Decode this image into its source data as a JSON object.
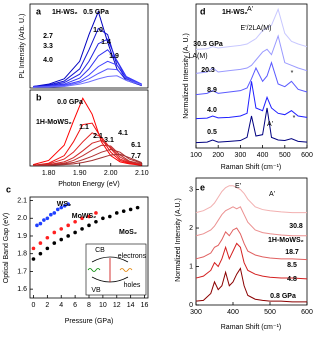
{
  "chart_data": [
    {
      "panel": "a",
      "type": "line",
      "title": "1H-WS₂",
      "title_color": "#2020e0",
      "y_label": "PL Intensity (Arb. U.)",
      "xlim": [
        1.74,
        2.12
      ],
      "ylim": [
        0,
        1.1
      ],
      "x": [
        1.75,
        1.8,
        1.85,
        1.9,
        1.93,
        1.96,
        1.99,
        2.02,
        2.05,
        2.1
      ],
      "series": [
        {
          "name": "0.5 GPa",
          "color": "#0000c0",
          "values": [
            0.02,
            0.05,
            0.12,
            0.35,
            0.7,
            1.0,
            0.6,
            0.25,
            0.1,
            0.03
          ]
        },
        {
          "name": "1.0",
          "color": "#1010d0",
          "values": [
            0.02,
            0.04,
            0.09,
            0.25,
            0.5,
            0.78,
            0.7,
            0.3,
            0.12,
            0.04
          ]
        },
        {
          "name": "1.4",
          "color": "#2020e0",
          "values": [
            0.02,
            0.03,
            0.07,
            0.18,
            0.35,
            0.58,
            0.64,
            0.35,
            0.14,
            0.04
          ]
        },
        {
          "name": "1.9",
          "color": "#3030f0",
          "values": [
            0.01,
            0.03,
            0.05,
            0.13,
            0.25,
            0.42,
            0.5,
            0.36,
            0.15,
            0.05
          ]
        },
        {
          "name": "2.7",
          "color": "#4040ff",
          "values": [
            0.01,
            0.02,
            0.04,
            0.09,
            0.17,
            0.28,
            0.35,
            0.3,
            0.15,
            0.05
          ]
        },
        {
          "name": "3.3",
          "color": "#5858ff",
          "values": [
            0.01,
            0.02,
            0.03,
            0.07,
            0.12,
            0.19,
            0.25,
            0.24,
            0.13,
            0.04
          ]
        },
        {
          "name": "4.0",
          "color": "#7070ff",
          "values": [
            0.01,
            0.01,
            0.02,
            0.05,
            0.08,
            0.12,
            0.15,
            0.16,
            0.1,
            0.04
          ]
        }
      ]
    },
    {
      "panel": "b",
      "type": "line",
      "title": "1H-MoWS₂",
      "title_color": "#e02020",
      "x_label": "Photon Energy (eV)",
      "xlim": [
        1.74,
        2.12
      ],
      "ylim": [
        0,
        1.1
      ],
      "xticks": [
        {
          "value": 1.8,
          "label": "1.80"
        },
        {
          "value": 1.9,
          "label": "1.90"
        },
        {
          "value": 2.0,
          "label": "2.00"
        },
        {
          "value": 2.1,
          "label": "2.10"
        }
      ],
      "x": [
        1.75,
        1.8,
        1.85,
        1.88,
        1.91,
        1.94,
        1.97,
        2.0,
        2.03,
        2.06,
        2.1
      ],
      "series": [
        {
          "name": "0.0 GPa",
          "color": "#ff0000",
          "values": [
            0.02,
            0.08,
            0.3,
            0.65,
            0.98,
            0.75,
            0.35,
            0.15,
            0.06,
            0.03,
            0.01
          ]
        },
        {
          "name": "1.1",
          "color": "#f01010",
          "values": [
            0.01,
            0.04,
            0.15,
            0.35,
            0.6,
            0.62,
            0.4,
            0.2,
            0.08,
            0.04,
            0.02
          ]
        },
        {
          "name": "2.1",
          "color": "#e02020",
          "values": [
            0.01,
            0.03,
            0.1,
            0.2,
            0.35,
            0.48,
            0.42,
            0.25,
            0.1,
            0.05,
            0.02
          ]
        },
        {
          "name": "3.1",
          "color": "#d02828",
          "values": [
            0.01,
            0.02,
            0.06,
            0.12,
            0.22,
            0.33,
            0.37,
            0.27,
            0.13,
            0.06,
            0.02
          ]
        },
        {
          "name": "4.1",
          "color": "#c03030",
          "values": [
            0.01,
            0.02,
            0.04,
            0.08,
            0.15,
            0.23,
            0.3,
            0.29,
            0.16,
            0.07,
            0.03
          ]
        },
        {
          "name": "6.1",
          "color": "#b03030",
          "values": [
            0.01,
            0.01,
            0.03,
            0.05,
            0.09,
            0.14,
            0.2,
            0.24,
            0.2,
            0.1,
            0.04
          ]
        },
        {
          "name": "7.7",
          "color": "#a03030",
          "values": [
            0.01,
            0.01,
            0.02,
            0.03,
            0.05,
            0.08,
            0.12,
            0.16,
            0.17,
            0.12,
            0.05
          ]
        }
      ]
    },
    {
      "panel": "c",
      "type": "scatter",
      "x_label": "Pressure (GPa)",
      "y_label": "Optical Band Gap (eV)",
      "xlim": [
        -0.5,
        16.5
      ],
      "ylim": [
        1.55,
        2.12
      ],
      "xticks": [
        0,
        2,
        4,
        6,
        8,
        10,
        12,
        14,
        16
      ],
      "yticks": [
        1.6,
        1.7,
        1.8,
        1.9,
        {
          "value": 2,
          "label": "2.0"
        },
        2.1
      ],
      "series": [
        {
          "name": "WS₂",
          "color": "#2040ff",
          "x": [
            0.5,
            1,
            1.5,
            2,
            2.5,
            3,
            3.5,
            4,
            4.5,
            5
          ],
          "values": [
            1.96,
            1.97,
            1.99,
            2.0,
            2.02,
            2.03,
            2.05,
            2.06,
            2.07,
            2.08
          ]
        },
        {
          "name": "MoWS₂",
          "color": "#ff2020",
          "x": [
            0,
            1,
            2,
            3,
            4,
            5,
            6,
            7,
            8,
            9
          ],
          "values": [
            1.83,
            1.86,
            1.89,
            1.92,
            1.94,
            1.96,
            1.98,
            2.0,
            2.01,
            2.03
          ]
        },
        {
          "name": "MoS₂",
          "color": "#000000",
          "x": [
            0,
            1,
            2,
            3,
            4,
            5,
            6,
            7,
            8,
            9,
            10,
            11,
            12,
            13,
            14,
            15
          ],
          "values": [
            1.77,
            1.8,
            1.83,
            1.86,
            1.88,
            1.9,
            1.92,
            1.94,
            1.96,
            1.98,
            2.0,
            2.01,
            2.03,
            2.04,
            2.05,
            2.06
          ]
        }
      ],
      "inset": {
        "labels": [
          "CB",
          "VB",
          "electrons",
          "holes"
        ]
      }
    },
    {
      "panel": "d",
      "type": "line",
      "title": "1H-WS₂",
      "title_color": "#2020e0",
      "x_label": "Raman Shift (cm⁻¹)",
      "y_label": "Normalized Intensity (A. U.)",
      "xlim": [
        100,
        600
      ],
      "ylim": [
        0,
        5.4
      ],
      "xticks": [
        100,
        200,
        300,
        400,
        500,
        600
      ],
      "x": [
        100,
        150,
        175,
        200,
        250,
        300,
        330,
        350,
        370,
        400,
        420,
        440,
        470,
        500,
        530,
        560,
        600
      ],
      "series": [
        {
          "name": "30.5 GPa",
          "color": "#c8c8ff",
          "values": [
            3.7,
            3.72,
            3.8,
            3.75,
            3.8,
            3.85,
            3.9,
            4.0,
            4.1,
            4.4,
            4.5,
            4.6,
            5.2,
            4.3,
            4.0,
            3.9,
            3.8
          ]
        },
        {
          "name": "20.3",
          "color": "#9a9aff",
          "values": [
            2.8,
            2.85,
            3.0,
            2.85,
            2.9,
            2.95,
            3.0,
            3.1,
            3.3,
            3.6,
            3.7,
            3.5,
            4.2,
            3.2,
            3.1,
            3.0,
            2.9
          ]
        },
        {
          "name": "8.9",
          "color": "#5a5aff",
          "values": [
            2.0,
            2.05,
            2.15,
            2.05,
            2.1,
            2.15,
            2.25,
            2.6,
            3.0,
            2.5,
            2.7,
            3.2,
            2.4,
            2.3,
            2.5,
            2.2,
            2.1
          ]
        },
        {
          "name": "4.0",
          "color": "#1f1fff",
          "values": [
            1.1,
            1.12,
            1.2,
            1.13,
            1.15,
            1.2,
            1.3,
            2.5,
            1.5,
            1.4,
            1.9,
            1.5,
            1.3,
            1.25,
            1.4,
            1.2,
            1.15
          ]
        },
        {
          "name": "0.5",
          "color": "#000080",
          "values": [
            0.2,
            0.22,
            0.3,
            0.22,
            0.25,
            0.28,
            0.4,
            1.2,
            0.45,
            0.5,
            1.5,
            0.4,
            0.3,
            0.28,
            0.35,
            0.25,
            0.22
          ]
        }
      ],
      "annotations": [
        "E'/2LA(M)",
        "LA(M)",
        "A'",
        "A'",
        "*",
        "*"
      ]
    },
    {
      "panel": "e",
      "type": "line",
      "title": "1H-MoWS₂",
      "title_color": "#e02020",
      "x_label": "Raman Shift (cm⁻¹)",
      "y_label": "Normalized Intensity (A.U.)",
      "xlim": [
        300,
        600
      ],
      "ylim": [
        0,
        3.3
      ],
      "xticks": [
        300,
        400,
        500,
        600
      ],
      "yticks": [
        0,
        1,
        2,
        3
      ],
      "x": [
        300,
        320,
        340,
        350,
        360,
        370,
        380,
        390,
        400,
        410,
        420,
        430,
        440,
        460,
        480,
        500,
        530,
        560,
        600
      ],
      "series": [
        {
          "name": "30.8",
          "color": "#f2b0b0",
          "values": [
            2.4,
            2.45,
            2.55,
            2.65,
            2.8,
            2.95,
            3.05,
            3.1,
            3.1,
            3.05,
            3.0,
            2.9,
            2.75,
            2.55,
            2.48,
            2.45,
            2.42,
            2.4,
            2.4
          ]
        },
        {
          "name": "18.7",
          "color": "#eb9090",
          "values": [
            1.8,
            1.85,
            1.95,
            2.05,
            2.2,
            2.35,
            2.45,
            2.5,
            2.55,
            2.5,
            2.55,
            2.35,
            2.15,
            1.95,
            1.88,
            1.85,
            1.82,
            1.8,
            1.8
          ]
        },
        {
          "name": "8.5",
          "color": "#e06060",
          "values": [
            1.2,
            1.25,
            1.35,
            1.5,
            1.55,
            1.7,
            1.9,
            1.8,
            1.95,
            2.0,
            1.85,
            1.6,
            1.4,
            1.3,
            1.25,
            1.22,
            1.2,
            1.2,
            1.18
          ]
        },
        {
          "name": "4.8",
          "color": "#d42020",
          "values": [
            0.7,
            0.75,
            0.9,
            1.1,
            1.0,
            1.2,
            1.5,
            1.2,
            1.4,
            1.6,
            1.5,
            1.1,
            0.9,
            0.8,
            0.75,
            0.72,
            0.7,
            0.7,
            0.68
          ]
        },
        {
          "name": "0.8 GPa",
          "color": "#8b0000",
          "values": [
            0.1,
            0.12,
            0.3,
            0.6,
            0.4,
            0.5,
            0.85,
            0.5,
            0.6,
            0.8,
            0.95,
            0.5,
            0.25,
            0.15,
            0.12,
            0.1,
            0.1,
            0.08,
            0.08
          ]
        }
      ],
      "annotations": [
        "E'",
        "A'"
      ]
    }
  ]
}
